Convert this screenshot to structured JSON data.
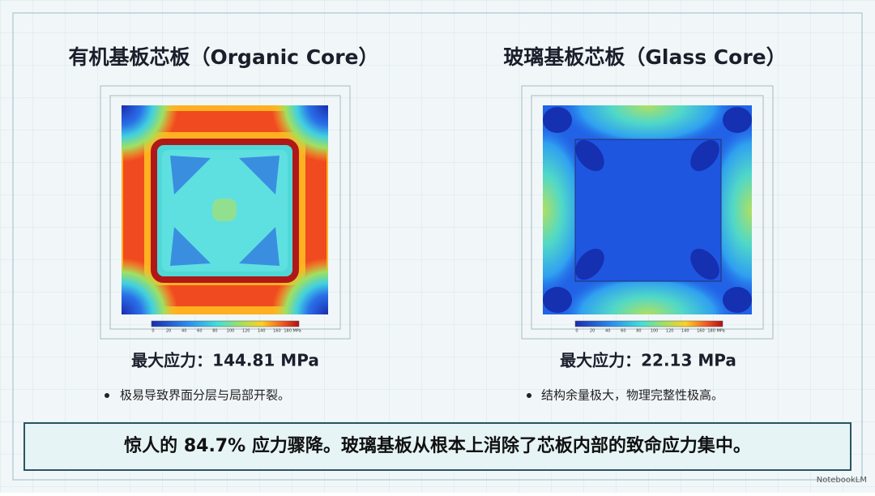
{
  "panels": [
    {
      "title": "有机基板芯板（Organic Core）",
      "colorbar_labels": [
        "0",
        "20",
        "40",
        "60",
        "80",
        "100",
        "120",
        "140",
        "160",
        "180 MPa"
      ],
      "max_stress": "最大应力：144.81 MPa",
      "note": "极易导致界面分层与局部开裂。"
    },
    {
      "title": "玻璃基板芯板（Glass Core）",
      "colorbar_labels": [
        "0",
        "20",
        "40",
        "60",
        "80",
        "100",
        "120",
        "140",
        "160",
        "180 MPa"
      ],
      "max_stress": "最大应力：22.13 MPa",
      "note": "结构余量极大，物理完整性极高。"
    }
  ],
  "banner": "惊人的 84.7% 应力骤降。玻璃基板从根本上消除了芯板内部的致命应力集中。",
  "watermark": "NotebookLM"
}
